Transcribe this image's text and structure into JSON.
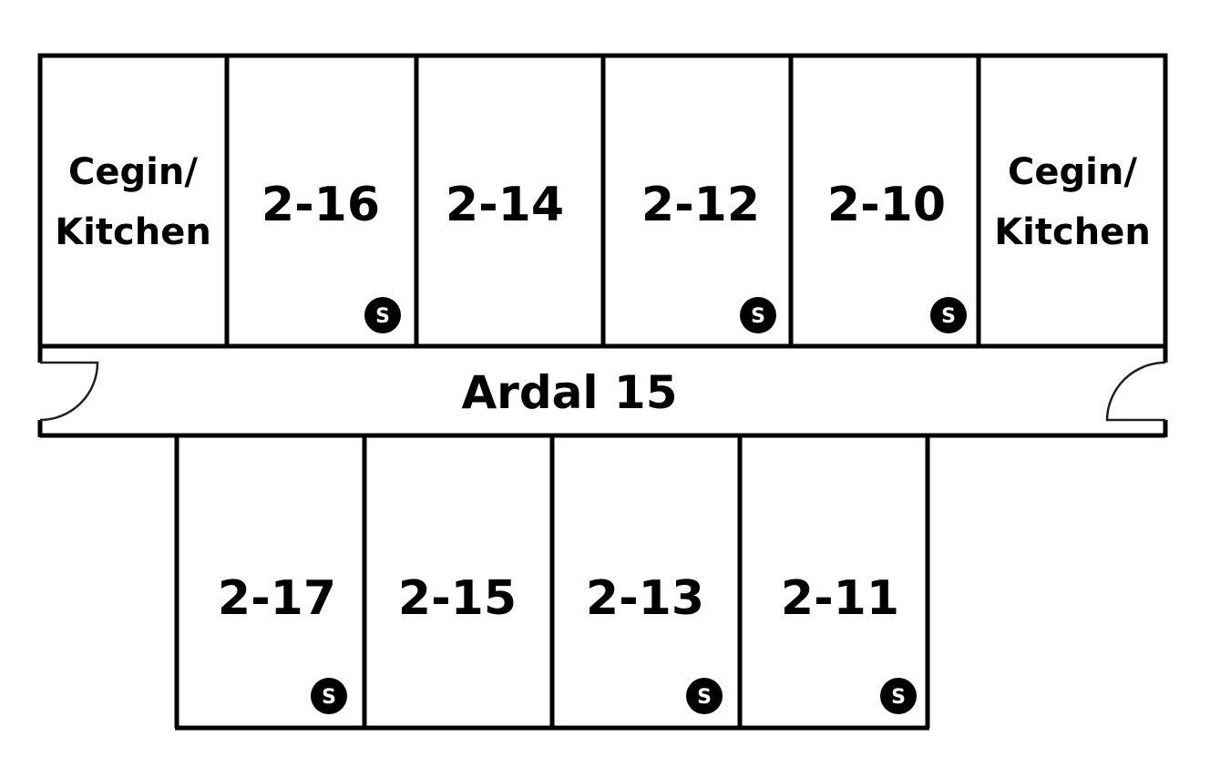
{
  "plan": {
    "hall_label": "Ardal 15",
    "top_row": [
      {
        "type": "kitchen",
        "line1": "Cegin/",
        "line2": "Kitchen"
      },
      {
        "type": "room",
        "label": "2-16",
        "badge": "S"
      },
      {
        "type": "room",
        "label": "2-14"
      },
      {
        "type": "room",
        "label": "2-12",
        "badge": "S"
      },
      {
        "type": "room",
        "label": "2-10",
        "badge": "S"
      },
      {
        "type": "kitchen",
        "line1": "Cegin/",
        "line2": "Kitchen"
      }
    ],
    "bottom_row": [
      {
        "type": "room",
        "label": "2-17",
        "badge": "S"
      },
      {
        "type": "room",
        "label": "2-15"
      },
      {
        "type": "room",
        "label": "2-13",
        "badge": "S"
      },
      {
        "type": "room",
        "label": "2-11",
        "badge": "S"
      }
    ],
    "colors": {
      "walls": "#000000",
      "badge": "#000000",
      "badge_text": "#ffffff",
      "background": "#ffffff"
    }
  }
}
